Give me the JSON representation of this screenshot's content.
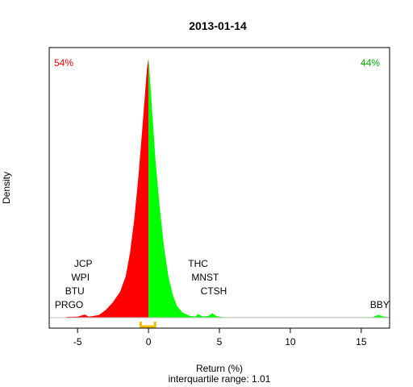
{
  "chart_data": {
    "type": "area",
    "title": "2013-01-14",
    "xlabel": "Return (%)",
    "ylabel": "Density",
    "subtitle": "interquartile range: 1.01",
    "xlim": [
      -7,
      17
    ],
    "ylim": [
      0,
      1
    ],
    "xticks": [
      -5,
      0,
      5,
      10,
      15
    ],
    "tick_labels": [
      "-5",
      "0",
      "5",
      "10",
      "15"
    ],
    "percent_negative": "54%",
    "percent_positive": "44%",
    "colors": {
      "negative": "#ff0000",
      "positive": "#00ff00",
      "negative_text": "#ff0000",
      "positive_text": "#00b000",
      "iqr": "#f0c000",
      "baseline": "#bebebe"
    },
    "iqr": [
      -0.55,
      0.46
    ],
    "density_negative": [
      [
        -5.8,
        0.003
      ],
      [
        -5.0,
        0.004
      ],
      [
        -4.5,
        0.012
      ],
      [
        -4.2,
        0.004
      ],
      [
        -3.5,
        0.01
      ],
      [
        -3.0,
        0.03
      ],
      [
        -2.5,
        0.06
      ],
      [
        -2.0,
        0.1
      ],
      [
        -1.6,
        0.16
      ],
      [
        -1.3,
        0.25
      ],
      [
        -1.0,
        0.38
      ],
      [
        -0.7,
        0.55
      ],
      [
        -0.45,
        0.72
      ],
      [
        -0.25,
        0.86
      ],
      [
        -0.1,
        0.96
      ],
      [
        0.0,
        1.0
      ]
    ],
    "density_positive": [
      [
        0.0,
        1.0
      ],
      [
        0.1,
        0.93
      ],
      [
        0.25,
        0.8
      ],
      [
        0.5,
        0.6
      ],
      [
        0.8,
        0.42
      ],
      [
        1.1,
        0.27
      ],
      [
        1.4,
        0.16
      ],
      [
        1.7,
        0.09
      ],
      [
        2.0,
        0.045
      ],
      [
        2.4,
        0.02
      ],
      [
        2.9,
        0.007
      ],
      [
        3.3,
        0.004
      ],
      [
        3.5,
        0.014
      ],
      [
        3.8,
        0.005
      ],
      [
        4.2,
        0.006
      ],
      [
        4.5,
        0.017
      ],
      [
        4.8,
        0.006
      ],
      [
        5.2,
        0.002
      ],
      [
        8.0,
        0.002
      ],
      [
        12.0,
        0.002
      ],
      [
        15.8,
        0.002
      ],
      [
        16.2,
        0.011
      ],
      [
        16.6,
        0.004
      ],
      [
        17.0,
        0.002
      ]
    ],
    "tickers_negative": [
      {
        "name": "JCP",
        "x": -4.6
      },
      {
        "name": "WPI",
        "x": -4.8
      },
      {
        "name": "BTU",
        "x": -5.2
      },
      {
        "name": "PRGO",
        "x": -5.6
      }
    ],
    "tickers_positive": [
      {
        "name": "THC",
        "x": 3.5
      },
      {
        "name": "MNST",
        "x": 4.0
      },
      {
        "name": "CTSH",
        "x": 4.6
      },
      {
        "name": "BBY",
        "x": 16.3
      }
    ]
  }
}
